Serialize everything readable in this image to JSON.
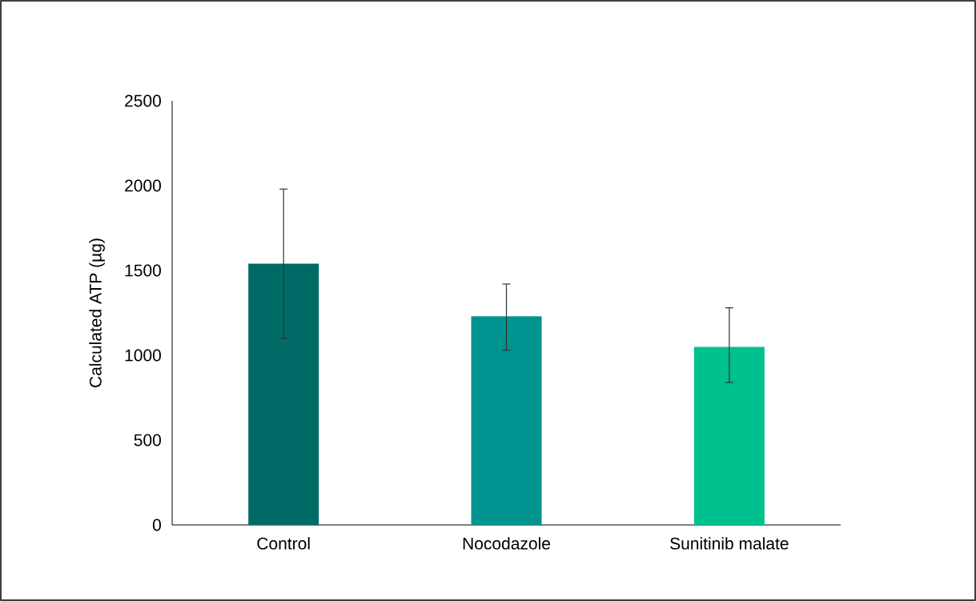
{
  "chart_data": {
    "type": "bar",
    "ylabel": "Calculated ATP (µg)",
    "categories": [
      "Control",
      "Nocodazole",
      "Sunitinib malate"
    ],
    "values": [
      1540,
      1230,
      1050
    ],
    "errors": [
      [
        1100,
        1980
      ],
      [
        1030,
        1420
      ],
      [
        840,
        1280
      ]
    ],
    "colors": [
      "#006b66",
      "#00938f",
      "#00c08f"
    ],
    "ylim": [
      0,
      2500
    ],
    "yticks": [
      0,
      500,
      1000,
      1500,
      2000,
      2500
    ],
    "grid": false
  }
}
